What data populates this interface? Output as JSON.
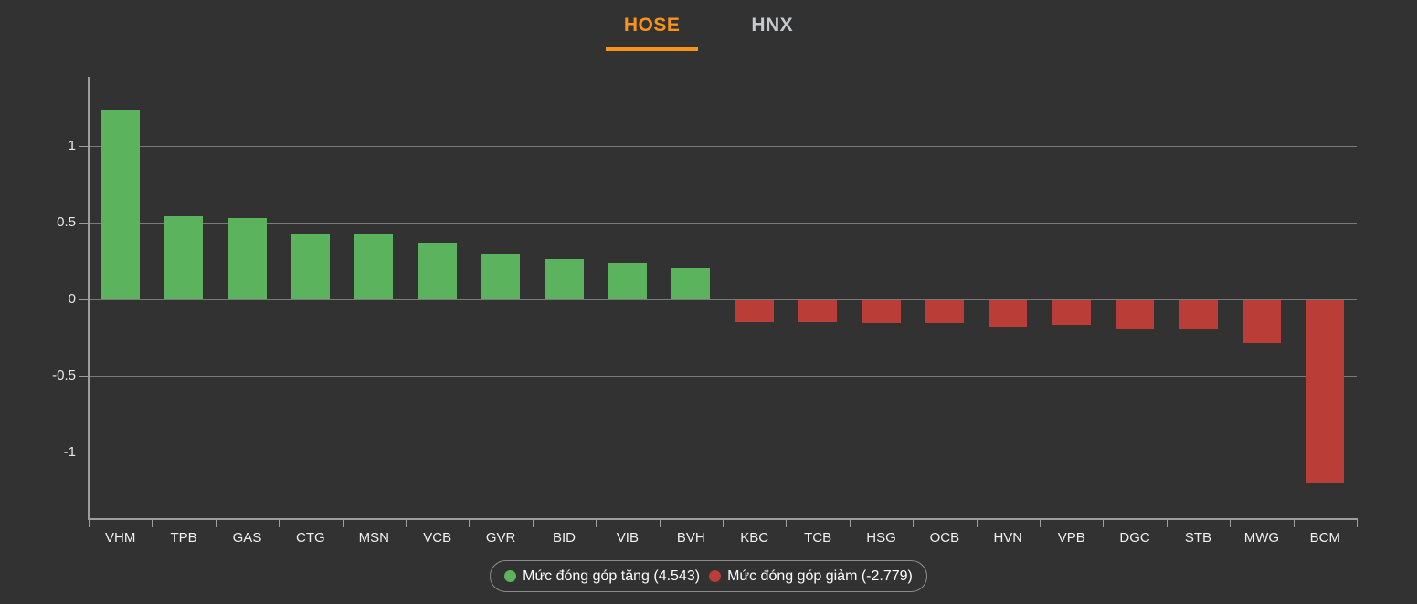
{
  "page": {
    "background": "#323232"
  },
  "tabs": {
    "items": [
      {
        "label": "HOSE",
        "active": true
      },
      {
        "label": "HNX",
        "active": false
      }
    ]
  },
  "colors": {
    "background": "#323232",
    "accent": "#f7941d",
    "tab_inactive_text": "#c6c9cd",
    "positive": "#5bb45d",
    "negative": "#bb3d38",
    "axis_line": "#9e9e9e",
    "grid_line": "#7a7a7a",
    "tick_text": "#e8e8e8",
    "category_text": "#f0f0f0",
    "legend_border": "#8c8c8c",
    "legend_text": "#ffffff"
  },
  "chart_data": {
    "type": "bar",
    "title": "",
    "xlabel": "",
    "ylabel": "",
    "categories": [
      "VHM",
      "TPB",
      "GAS",
      "CTG",
      "MSN",
      "VCB",
      "GVR",
      "BID",
      "VIB",
      "BVH",
      "KBC",
      "TCB",
      "HSG",
      "OCB",
      "HVN",
      "VPB",
      "DGC",
      "STB",
      "MWG",
      "BCM"
    ],
    "values": [
      1.23,
      0.54,
      0.53,
      0.43,
      0.42,
      0.37,
      0.3,
      0.26,
      0.24,
      0.2,
      -0.14,
      -0.14,
      -0.15,
      -0.15,
      -0.17,
      -0.16,
      -0.19,
      -0.19,
      -0.28,
      -1.19
    ],
    "positive_color": "#5bb45d",
    "negative_color": "#bb3d38",
    "y_ticks": [
      {
        "value": 1,
        "label": "1"
      },
      {
        "value": 0.5,
        "label": "0.5"
      },
      {
        "value": 0,
        "label": "0"
      },
      {
        "value": -0.5,
        "label": "-0.5"
      },
      {
        "value": -1,
        "label": "-1"
      }
    ],
    "ylim": [
      -1.43,
      1.45
    ],
    "grid": true,
    "legend_position": "bottom",
    "legend": [
      {
        "label": "Mức đóng góp tăng (4.543)",
        "color": "#5bb45d"
      },
      {
        "label": "Mức đóng góp giảm (-2.779)",
        "color": "#bb3d38"
      }
    ]
  }
}
